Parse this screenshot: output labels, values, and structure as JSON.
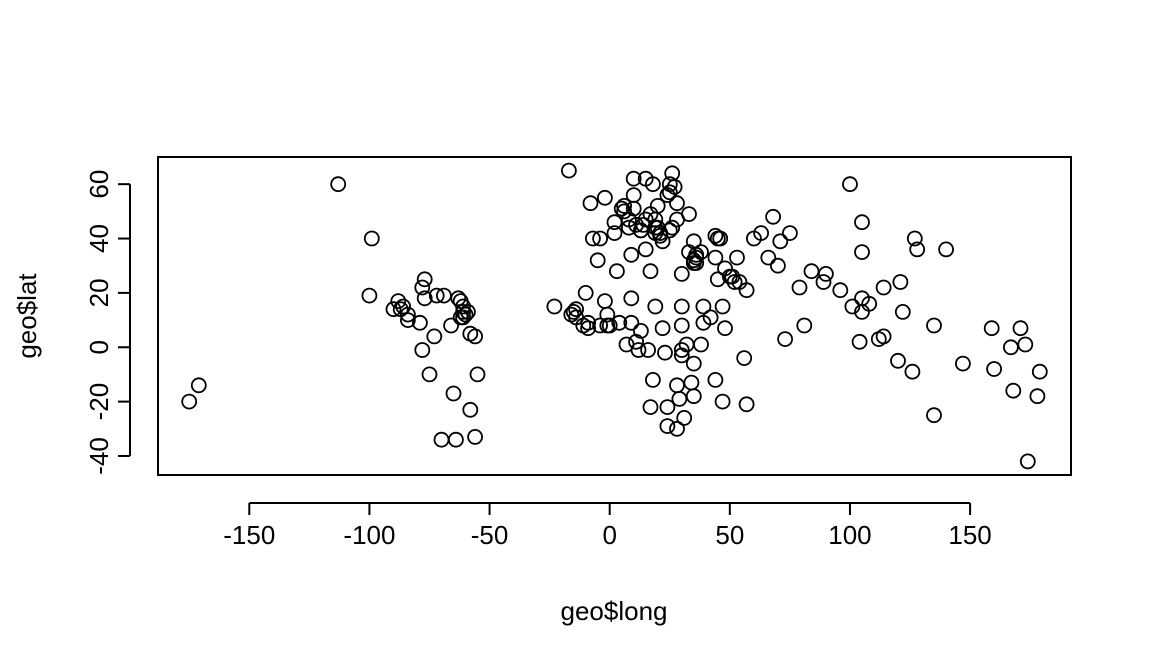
{
  "chart_data": {
    "type": "scatter",
    "title": "",
    "xlabel": "geo$long",
    "ylabel": "geo$lat",
    "xlim": [
      -188,
      192
    ],
    "ylim": [
      -47,
      70
    ],
    "xticks": [
      -150,
      -100,
      -50,
      0,
      50,
      100,
      150
    ],
    "yticks": [
      -40,
      -20,
      0,
      20,
      40,
      60
    ],
    "x_tick_labels": [
      "-150",
      "-100",
      "-50",
      "0",
      "50",
      "100",
      "150"
    ],
    "y_tick_labels": [
      "-40",
      "-20",
      "0",
      "20",
      "40",
      "60"
    ],
    "grid": false,
    "legend": "none",
    "marker": "open-circle",
    "points": [
      [
        -175,
        -20
      ],
      [
        -171,
        -14
      ],
      [
        -113,
        60
      ],
      [
        -99,
        40
      ],
      [
        -100,
        19
      ],
      [
        -90,
        14
      ],
      [
        -88,
        17
      ],
      [
        -87,
        14
      ],
      [
        -86,
        15
      ],
      [
        -84,
        12
      ],
      [
        -84,
        10
      ],
      [
        -79,
        9
      ],
      [
        -77,
        25
      ],
      [
        -77,
        18
      ],
      [
        -78,
        22
      ],
      [
        -78,
        -1
      ],
      [
        -75,
        -10
      ],
      [
        -73,
        4
      ],
      [
        -72,
        19
      ],
      [
        -69,
        19
      ],
      [
        -70,
        -34
      ],
      [
        -66,
        8
      ],
      [
        -65,
        -17
      ],
      [
        -64,
        -34
      ],
      [
        -63,
        18
      ],
      [
        -62,
        17
      ],
      [
        -61,
        15
      ],
      [
        -61,
        13
      ],
      [
        -62,
        11
      ],
      [
        -61,
        11
      ],
      [
        -60,
        12
      ],
      [
        -59,
        13
      ],
      [
        -58,
        5
      ],
      [
        -58,
        -23
      ],
      [
        -56,
        -33
      ],
      [
        -56,
        4
      ],
      [
        -55,
        -10
      ],
      [
        -23,
        15
      ],
      [
        -17,
        65
      ],
      [
        -15,
        13
      ],
      [
        -16,
        12
      ],
      [
        -14,
        11
      ],
      [
        -14,
        14
      ],
      [
        -11,
        8
      ],
      [
        -10,
        20
      ],
      [
        -9,
        9
      ],
      [
        -9,
        7
      ],
      [
        -8,
        53
      ],
      [
        -7,
        40
      ],
      [
        -5,
        32
      ],
      [
        -4,
        40
      ],
      [
        -4,
        8
      ],
      [
        -2,
        55
      ],
      [
        -2,
        17
      ],
      [
        -1,
        12
      ],
      [
        -1,
        8
      ],
      [
        0,
        8
      ],
      [
        2,
        46
      ],
      [
        2,
        42
      ],
      [
        3,
        28
      ],
      [
        4,
        9
      ],
      [
        5,
        51
      ],
      [
        6,
        52
      ],
      [
        6,
        50
      ],
      [
        7,
        1
      ],
      [
        8,
        47
      ],
      [
        8,
        44
      ],
      [
        9,
        9
      ],
      [
        9,
        34
      ],
      [
        9,
        18
      ],
      [
        10,
        62
      ],
      [
        10,
        56
      ],
      [
        10,
        51
      ],
      [
        11,
        45
      ],
      [
        11,
        2
      ],
      [
        12,
        -1
      ],
      [
        13,
        6
      ],
      [
        13,
        43
      ],
      [
        13,
        43
      ],
      [
        14,
        45
      ],
      [
        15,
        62
      ],
      [
        15,
        47
      ],
      [
        15,
        36
      ],
      [
        16,
        -1
      ],
      [
        17,
        28
      ],
      [
        17,
        49
      ],
      [
        18,
        60
      ],
      [
        19,
        47
      ],
      [
        19,
        42
      ],
      [
        19,
        44
      ],
      [
        20,
        52
      ],
      [
        20,
        44
      ],
      [
        19,
        15
      ],
      [
        18,
        -12
      ],
      [
        17,
        -22
      ],
      [
        21,
        42
      ],
      [
        21,
        41
      ],
      [
        22,
        39
      ],
      [
        22,
        7
      ],
      [
        23,
        -2
      ],
      [
        24,
        -22
      ],
      [
        24,
        56
      ],
      [
        24,
        -29
      ],
      [
        25,
        57
      ],
      [
        25,
        60
      ],
      [
        25,
        43
      ],
      [
        26,
        64
      ],
      [
        26,
        44
      ],
      [
        27,
        59
      ],
      [
        28,
        53
      ],
      [
        28,
        -30
      ],
      [
        28,
        47
      ],
      [
        28,
        -14
      ],
      [
        29,
        -19
      ],
      [
        30,
        15
      ],
      [
        30,
        27
      ],
      [
        30,
        8
      ],
      [
        30,
        -1
      ],
      [
        30,
        -3
      ],
      [
        31,
        -26
      ],
      [
        32,
        1
      ],
      [
        33,
        49
      ],
      [
        33,
        35
      ],
      [
        34,
        -13
      ],
      [
        35,
        39
      ],
      [
        35,
        32
      ],
      [
        35,
        -18
      ],
      [
        35,
        -6
      ],
      [
        36,
        33
      ],
      [
        35,
        31
      ],
      [
        36,
        31
      ],
      [
        36,
        34
      ],
      [
        38,
        1
      ],
      [
        38,
        35
      ],
      [
        39,
        9
      ],
      [
        39,
        15
      ],
      [
        42,
        11
      ],
      [
        44,
        41
      ],
      [
        44,
        33
      ],
      [
        44,
        -12
      ],
      [
        45,
        40
      ],
      [
        45,
        25
      ],
      [
        46,
        40
      ],
      [
        47,
        15
      ],
      [
        47,
        -20
      ],
      [
        48,
        29
      ],
      [
        48,
        7
      ],
      [
        50,
        26
      ],
      [
        51,
        26
      ],
      [
        52,
        24
      ],
      [
        53,
        33
      ],
      [
        54,
        24
      ],
      [
        56,
        -4
      ],
      [
        57,
        21
      ],
      [
        57,
        -21
      ],
      [
        60,
        40
      ],
      [
        63,
        42
      ],
      [
        66,
        33
      ],
      [
        68,
        48
      ],
      [
        70,
        30
      ],
      [
        71,
        39
      ],
      [
        73,
        3
      ],
      [
        75,
        42
      ],
      [
        79,
        22
      ],
      [
        81,
        8
      ],
      [
        84,
        28
      ],
      [
        89,
        24
      ],
      [
        90,
        27
      ],
      [
        96,
        21
      ],
      [
        100,
        60
      ],
      [
        101,
        15
      ],
      [
        104,
        2
      ],
      [
        105,
        18
      ],
      [
        105,
        13
      ],
      [
        105,
        46
      ],
      [
        105,
        35
      ],
      [
        108,
        16
      ],
      [
        112,
        3
      ],
      [
        114,
        22
      ],
      [
        114,
        4
      ],
      [
        120,
        -5
      ],
      [
        121,
        24
      ],
      [
        122,
        13
      ],
      [
        126,
        -9
      ],
      [
        127,
        40
      ],
      [
        128,
        36
      ],
      [
        135,
        8
      ],
      [
        135,
        -25
      ],
      [
        140,
        36
      ],
      [
        147,
        -6
      ],
      [
        159,
        7
      ],
      [
        160,
        -8
      ],
      [
        167,
        0
      ],
      [
        168,
        -16
      ],
      [
        171,
        7
      ],
      [
        173,
        1
      ],
      [
        174,
        -42
      ],
      [
        178,
        -18
      ],
      [
        179,
        -9
      ]
    ]
  }
}
